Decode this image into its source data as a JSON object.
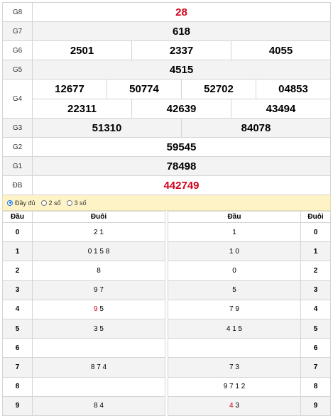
{
  "results": {
    "g8": {
      "label": "G8",
      "value": "28"
    },
    "g7": {
      "label": "G7",
      "value": "618"
    },
    "g6": {
      "label": "G6",
      "values": [
        "2501",
        "2337",
        "4055"
      ]
    },
    "g5": {
      "label": "G5",
      "value": "4515"
    },
    "g4": {
      "label": "G4",
      "row1": [
        "12677",
        "50774",
        "52702",
        "04853"
      ],
      "row2": [
        "22311",
        "42639",
        "43494"
      ]
    },
    "g3": {
      "label": "G3",
      "values": [
        "51310",
        "84078"
      ]
    },
    "g2": {
      "label": "G2",
      "value": "59545"
    },
    "g1": {
      "label": "G1",
      "value": "78498"
    },
    "db": {
      "label": "ĐB",
      "value": "442749"
    }
  },
  "options": {
    "full": "Đầy đủ",
    "two": "2 số",
    "three": "3 số",
    "selected": "full"
  },
  "loto": {
    "head_label": "Đầu",
    "tail_label": "Đuôi",
    "rows": [
      {
        "d": "0",
        "left_pre": "",
        "left_red": "",
        "left_post": "2 1",
        "right_pre": "",
        "right_red": "",
        "right_post": "1",
        "t": "0"
      },
      {
        "d": "1",
        "left_pre": "",
        "left_red": "",
        "left_post": "0 1 5 8",
        "right_pre": "",
        "right_red": "",
        "right_post": "1 0",
        "t": "1"
      },
      {
        "d": "2",
        "left_pre": "",
        "left_red": "",
        "left_post": "8",
        "right_pre": "",
        "right_red": "",
        "right_post": "0",
        "t": "2"
      },
      {
        "d": "3",
        "left_pre": "",
        "left_red": "",
        "left_post": "9 7",
        "right_pre": "",
        "right_red": "",
        "right_post": "5",
        "t": "3"
      },
      {
        "d": "4",
        "left_pre": "",
        "left_red": "9",
        "left_post": " 5",
        "right_pre": "",
        "right_red": "",
        "right_post": "7 9",
        "t": "4"
      },
      {
        "d": "5",
        "left_pre": "",
        "left_red": "",
        "left_post": "3 5",
        "right_pre": "",
        "right_red": "",
        "right_post": "4 1 5",
        "t": "5"
      },
      {
        "d": "6",
        "left_pre": "",
        "left_red": "",
        "left_post": "",
        "right_pre": "",
        "right_red": "",
        "right_post": "",
        "t": "6"
      },
      {
        "d": "7",
        "left_pre": "",
        "left_red": "",
        "left_post": "8 7 4",
        "right_pre": "",
        "right_red": "",
        "right_post": "7 3",
        "t": "7"
      },
      {
        "d": "8",
        "left_pre": "",
        "left_red": "",
        "left_post": "",
        "right_pre": "",
        "right_red": "",
        "right_post": "9 7 1 2",
        "t": "8"
      },
      {
        "d": "9",
        "left_pre": "",
        "left_red": "",
        "left_post": "8 4",
        "right_pre": "",
        "right_red": "4",
        "right_post": " 3",
        "t": "9"
      }
    ]
  }
}
